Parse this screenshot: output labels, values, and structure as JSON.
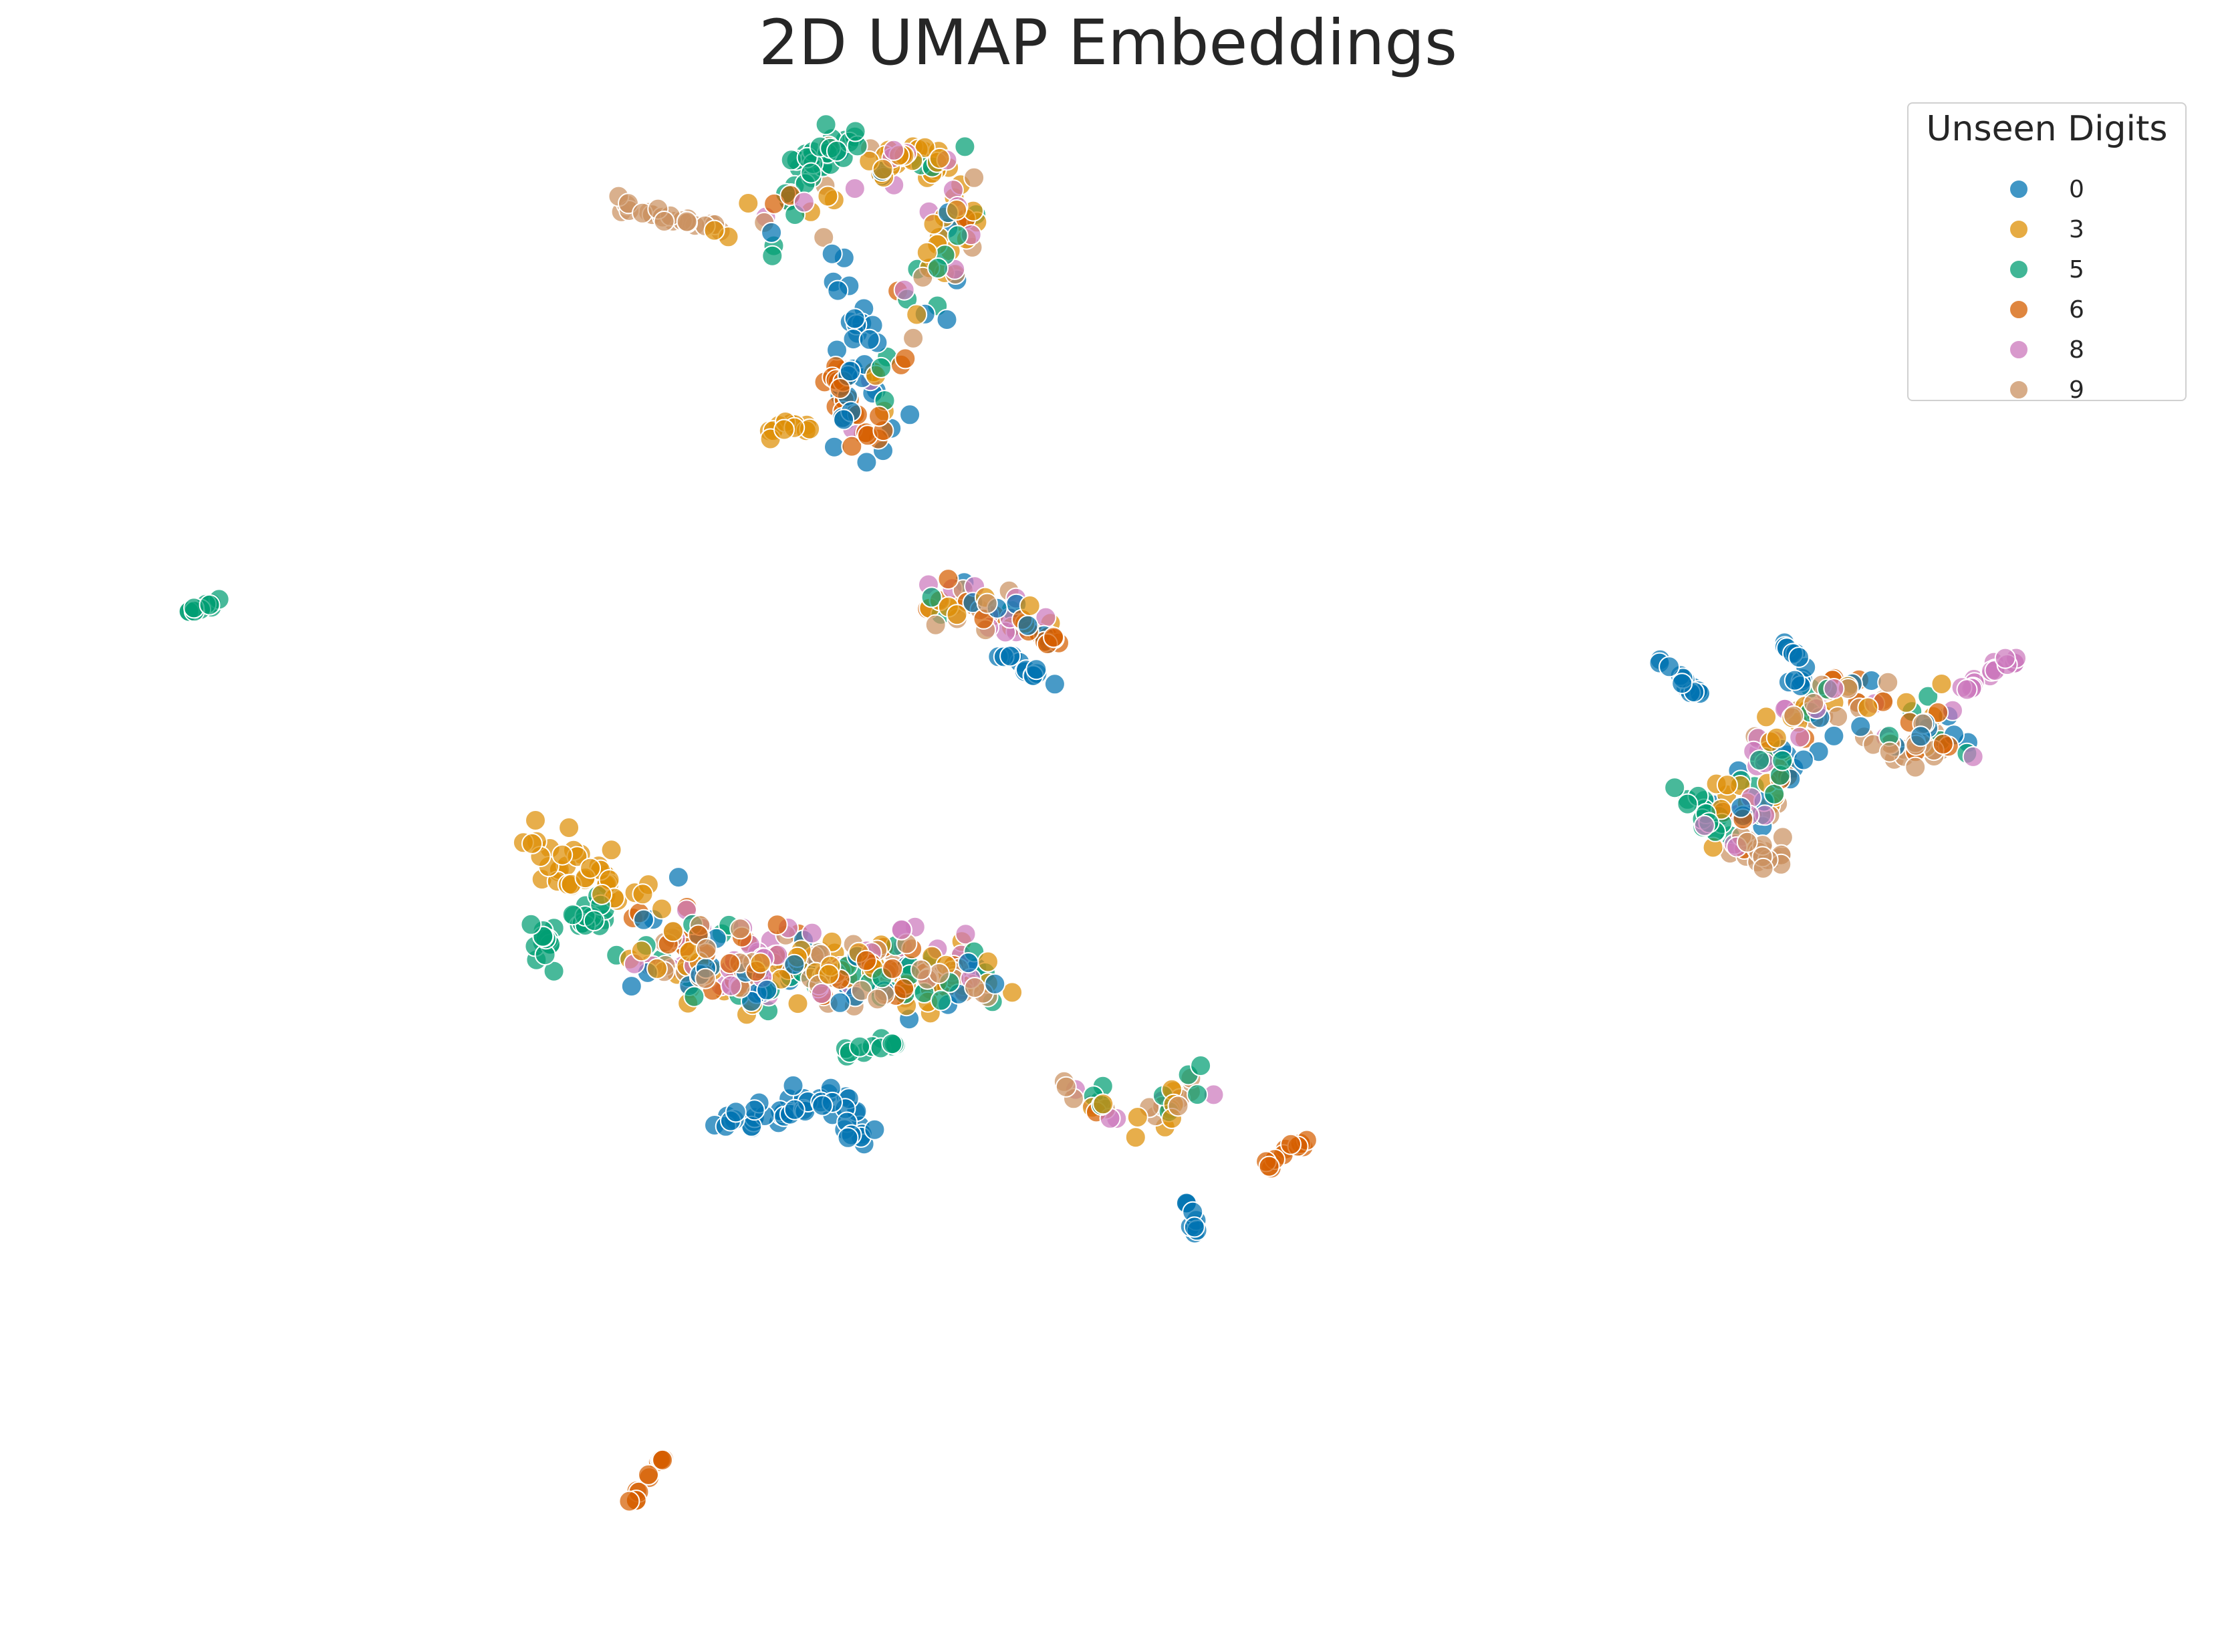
{
  "chart_data": {
    "type": "scatter",
    "title": "2D UMAP Embeddings",
    "xlabel": "",
    "ylabel": "",
    "xlim": [
      -1,
      23
    ],
    "ylim": [
      -1,
      19
    ],
    "grid": false,
    "axes_visible": false,
    "legend": {
      "title": "Unseen Digits",
      "placement": "top-right"
    },
    "marker": {
      "shape": "circle",
      "opacity": 0.72,
      "edge_color": "#ffffff"
    },
    "series": [
      {
        "name": "0",
        "color": "#0173b2"
      },
      {
        "name": "3",
        "color": "#de8f05"
      },
      {
        "name": "5",
        "color": "#029e73"
      },
      {
        "name": "6",
        "color": "#d55e00"
      },
      {
        "name": "8",
        "color": "#cc78bc"
      },
      {
        "name": "9",
        "color": "#ca9161"
      }
    ],
    "clusters": [
      {
        "name": "top cluster",
        "points_approx": 240,
        "mix": {
          "0": 0.16,
          "3": 0.22,
          "5": 0.16,
          "6": 0.12,
          "8": 0.18,
          "9": 0.16
        },
        "spine": [
          [
            6.5,
            17.8
          ],
          [
            7.4,
            18.4
          ],
          [
            7.9,
            18.7
          ],
          [
            8.5,
            18.9
          ],
          [
            9.0,
            18.6
          ],
          [
            9.3,
            17.9
          ],
          [
            9.0,
            17.2
          ],
          [
            8.6,
            16.5
          ],
          [
            8.3,
            15.8
          ],
          [
            8.2,
            15.0
          ]
        ],
        "spread": 0.2,
        "subgroups": [
          {
            "series": "9",
            "count": 22,
            "spine": [
              [
                5.3,
                18.2
              ],
              [
                5.9,
                18.0
              ],
              [
                6.5,
                17.9
              ]
            ],
            "spread": 0.06
          },
          {
            "series": "5",
            "count": 28,
            "spine": [
              [
                7.2,
                18.2
              ],
              [
                7.4,
                18.9
              ],
              [
                7.8,
                19.2
              ],
              [
                8.0,
                18.7
              ]
            ],
            "spread": 0.12
          },
          {
            "series": "3",
            "count": 34,
            "spine": [
              [
                8.1,
                18.9
              ],
              [
                8.9,
                18.8
              ],
              [
                9.3,
                18.4
              ],
              [
                9.1,
                17.8
              ],
              [
                9.2,
                17.2
              ]
            ],
            "spread": 0.12
          },
          {
            "series": "0",
            "count": 32,
            "spine": [
              [
                7.8,
                17.3
              ],
              [
                8.1,
                16.8
              ],
              [
                8.0,
                16.2
              ],
              [
                7.9,
                15.6
              ],
              [
                8.1,
                15.1
              ]
            ],
            "spread": 0.13
          },
          {
            "series": "6",
            "count": 22,
            "spine": [
              [
                7.8,
                16.0
              ],
              [
                7.9,
                15.4
              ],
              [
                8.2,
                15.0
              ]
            ],
            "spread": 0.12
          },
          {
            "series": "3",
            "count": 12,
            "spine": [
              [
                7.0,
                15.1
              ],
              [
                7.5,
                15.2
              ]
            ],
            "spread": 0.06
          }
        ]
      },
      {
        "name": "upper-middle cluster",
        "points_approx": 70,
        "mix": {
          "0": 0.12,
          "3": 0.18,
          "5": 0.1,
          "6": 0.22,
          "8": 0.2,
          "9": 0.18
        },
        "spine": [
          [
            8.9,
            12.9
          ],
          [
            9.4,
            12.7
          ],
          [
            9.9,
            12.5
          ],
          [
            10.3,
            12.4
          ]
        ],
        "spread": 0.16,
        "subgroups": [
          {
            "series": "0",
            "count": 12,
            "spine": [
              [
                9.7,
                12.1
              ],
              [
                10.1,
                11.8
              ],
              [
                10.4,
                11.7
              ]
            ],
            "spread": 0.05
          },
          {
            "series": "6",
            "count": 8,
            "spine": [
              [
                10.1,
                12.4
              ],
              [
                10.4,
                12.2
              ]
            ],
            "spread": 0.06
          }
        ]
      },
      {
        "name": "small green cluster",
        "points_approx": 12,
        "mix": {
          "5": 1.0
        },
        "spine": [
          [
            0.1,
            12.65
          ],
          [
            0.5,
            12.8
          ]
        ],
        "spread": 0.03
      },
      {
        "name": "right cluster",
        "points_approx": 230,
        "mix": {
          "0": 0.14,
          "3": 0.16,
          "5": 0.16,
          "6": 0.18,
          "8": 0.17,
          "9": 0.19
        },
        "spine": [
          [
            18.3,
            9.5
          ],
          [
            18.6,
            10.0
          ],
          [
            18.9,
            10.6
          ],
          [
            19.2,
            11.1
          ],
          [
            19.6,
            11.6
          ],
          [
            20.1,
            11.4
          ],
          [
            20.6,
            11.1
          ],
          [
            21.0,
            10.9
          ]
        ],
        "spread": 0.22,
        "subgroups": [
          {
            "series": "0",
            "count": 14,
            "spine": [
              [
                17.5,
                12.0
              ],
              [
                17.8,
                11.7
              ],
              [
                18.0,
                11.5
              ]
            ],
            "spread": 0.04
          },
          {
            "series": "8",
            "count": 16,
            "spine": [
              [
                21.2,
                11.6
              ],
              [
                21.5,
                11.9
              ],
              [
                21.8,
                12.0
              ]
            ],
            "spread": 0.05
          },
          {
            "series": "5",
            "count": 16,
            "spine": [
              [
                17.8,
                10.2
              ],
              [
                18.1,
                9.9
              ],
              [
                18.4,
                9.6
              ]
            ],
            "spread": 0.1
          },
          {
            "series": "9",
            "count": 18,
            "spine": [
              [
                18.6,
                9.5
              ],
              [
                18.8,
                9.2
              ],
              [
                19.0,
                9.3
              ]
            ],
            "spread": 0.07
          },
          {
            "series": "9",
            "count": 20,
            "spine": [
              [
                20.2,
                10.9
              ],
              [
                20.6,
                10.7
              ],
              [
                20.9,
                10.9
              ]
            ],
            "spread": 0.1
          },
          {
            "series": "0",
            "count": 14,
            "spine": [
              [
                18.9,
                12.3
              ],
              [
                19.2,
                12.0
              ],
              [
                19.1,
                11.6
              ]
            ],
            "spread": 0.08
          }
        ]
      },
      {
        "name": "lower-left large cluster",
        "points_approx": 420,
        "mix": {
          "0": 0.12,
          "3": 0.21,
          "5": 0.13,
          "6": 0.17,
          "8": 0.2,
          "9": 0.17
        },
        "spine": [
          [
            5.4,
            8.0
          ],
          [
            6.2,
            7.9
          ],
          [
            7.0,
            7.8
          ],
          [
            7.8,
            7.7
          ],
          [
            8.6,
            7.7
          ],
          [
            9.4,
            7.6
          ]
        ],
        "spread": 0.28,
        "subgroups": [
          {
            "series": "3",
            "count": 40,
            "spine": [
              [
                4.2,
                9.6
              ],
              [
                4.6,
                9.1
              ],
              [
                5.1,
                8.9
              ],
              [
                5.6,
                8.8
              ]
            ],
            "spread": 0.18
          },
          {
            "series": "5",
            "count": 30,
            "spine": [
              [
                4.2,
                7.9
              ],
              [
                4.5,
                8.3
              ],
              [
                4.8,
                8.6
              ],
              [
                5.0,
                8.5
              ]
            ],
            "spread": 0.12
          },
          {
            "series": "0",
            "count": 48,
            "spine": [
              [
                6.1,
                5.6
              ],
              [
                6.7,
                5.7
              ],
              [
                7.3,
                5.9
              ],
              [
                7.7,
                6.0
              ],
              [
                8.0,
                5.7
              ],
              [
                8.2,
                5.2
              ]
            ],
            "spread": 0.1
          },
          {
            "series": "5",
            "count": 12,
            "spine": [
              [
                7.8,
                6.7
              ],
              [
                8.2,
                6.7
              ],
              [
                8.6,
                6.8
              ]
            ],
            "spread": 0.04
          },
          {
            "series": "9",
            "count": 16,
            "spine": [
              [
                8.8,
                7.7
              ],
              [
                9.2,
                7.6
              ],
              [
                9.6,
                7.5
              ]
            ],
            "spread": 0.08
          }
        ]
      },
      {
        "name": "lower-middle cluster",
        "points_approx": 60,
        "mix": {
          "3": 0.22,
          "5": 0.14,
          "6": 0.08,
          "8": 0.24,
          "9": 0.32
        },
        "spine": [
          [
            10.5,
            6.1
          ],
          [
            11.0,
            5.8
          ],
          [
            11.5,
            5.7
          ],
          [
            11.8,
            6.0
          ],
          [
            12.1,
            6.2
          ],
          [
            12.3,
            6.3
          ]
        ],
        "spread": 0.13,
        "subgroups": [
          {
            "series": "0",
            "count": 10,
            "spine": [
              [
                11.9,
                4.8
              ],
              [
                11.95,
                4.6
              ],
              [
                12.0,
                4.3
              ],
              [
                12.1,
                4.05
              ]
            ],
            "spread": 0.03
          },
          {
            "series": "6",
            "count": 12,
            "spine": [
              [
                12.9,
                5.1
              ],
              [
                13.2,
                5.3
              ],
              [
                13.4,
                5.4
              ]
            ],
            "spread": 0.05
          }
        ]
      },
      {
        "name": "bottom orange cluster",
        "points_approx": 12,
        "mix": {
          "6": 1.0
        },
        "spine": [
          [
            5.2,
            0.35
          ],
          [
            5.4,
            0.5
          ],
          [
            5.6,
            0.95
          ],
          [
            5.75,
            1.1
          ]
        ],
        "spread": 0.03
      }
    ]
  }
}
